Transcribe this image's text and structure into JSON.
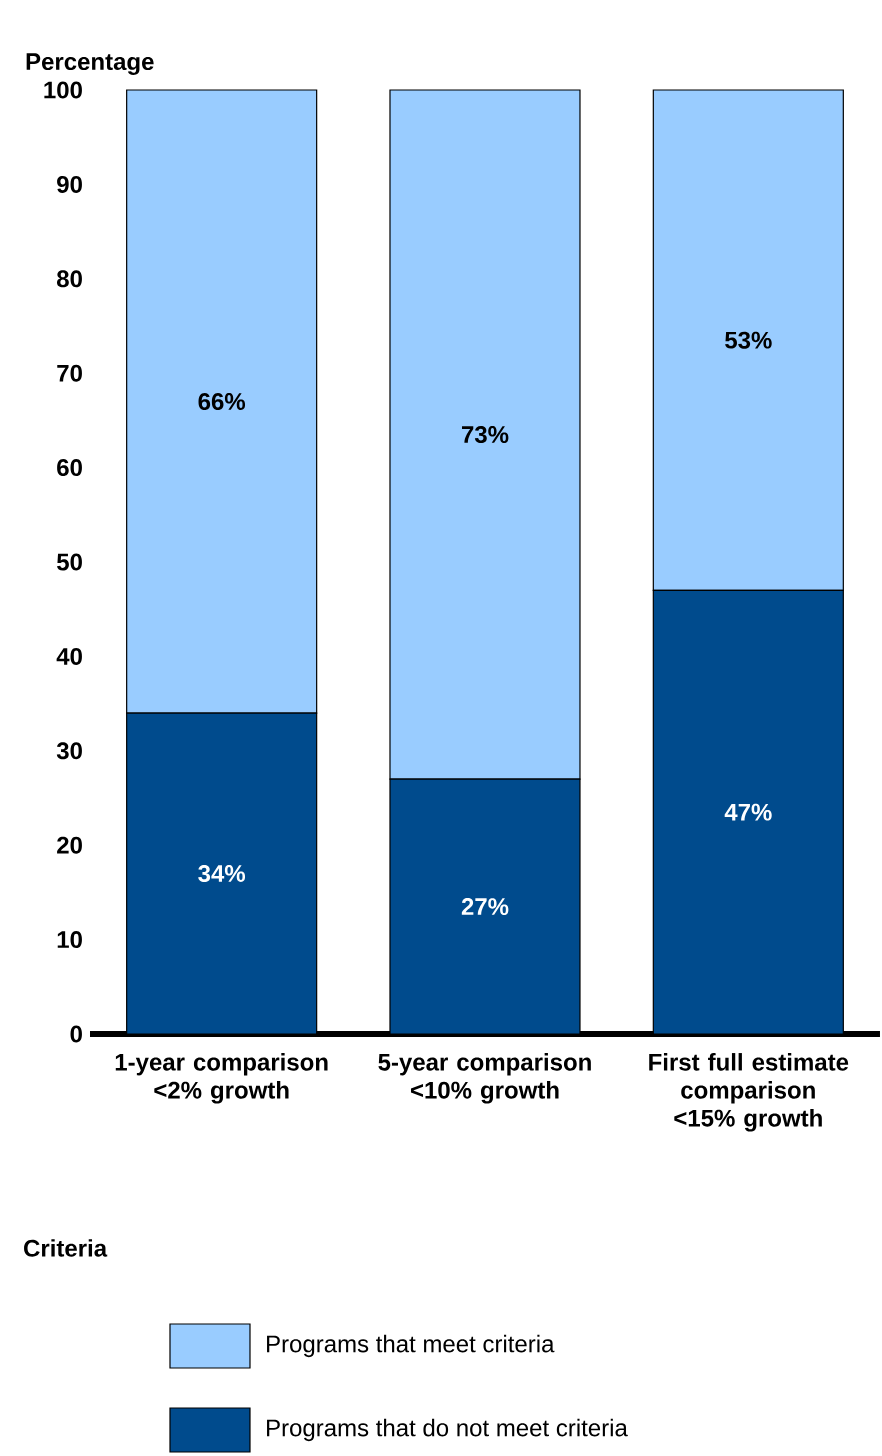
{
  "chart_data": {
    "type": "bar",
    "stacked": true,
    "ylabel": "Percentage",
    "legend_title": "Criteria",
    "legend": "bottom",
    "categories": [
      "1-year comparison <2% growth",
      "5-year comparison <10% growth",
      "First full estimate comparison <15% growth"
    ],
    "ylim": [
      0,
      100
    ],
    "yticks": [
      0,
      10,
      20,
      30,
      40,
      50,
      60,
      70,
      80,
      90,
      100
    ],
    "series": [
      {
        "name": "Programs that do not meet criteria",
        "color": "#004b8d",
        "values": [
          34,
          27,
          47
        ],
        "value_labels": [
          "34%",
          "27%",
          "47%"
        ]
      },
      {
        "name": "Programs that meet criteria",
        "color": "#99ccff",
        "values": [
          66,
          73,
          53
        ],
        "value_labels": [
          "66%",
          "73%",
          "53%"
        ]
      }
    ]
  }
}
